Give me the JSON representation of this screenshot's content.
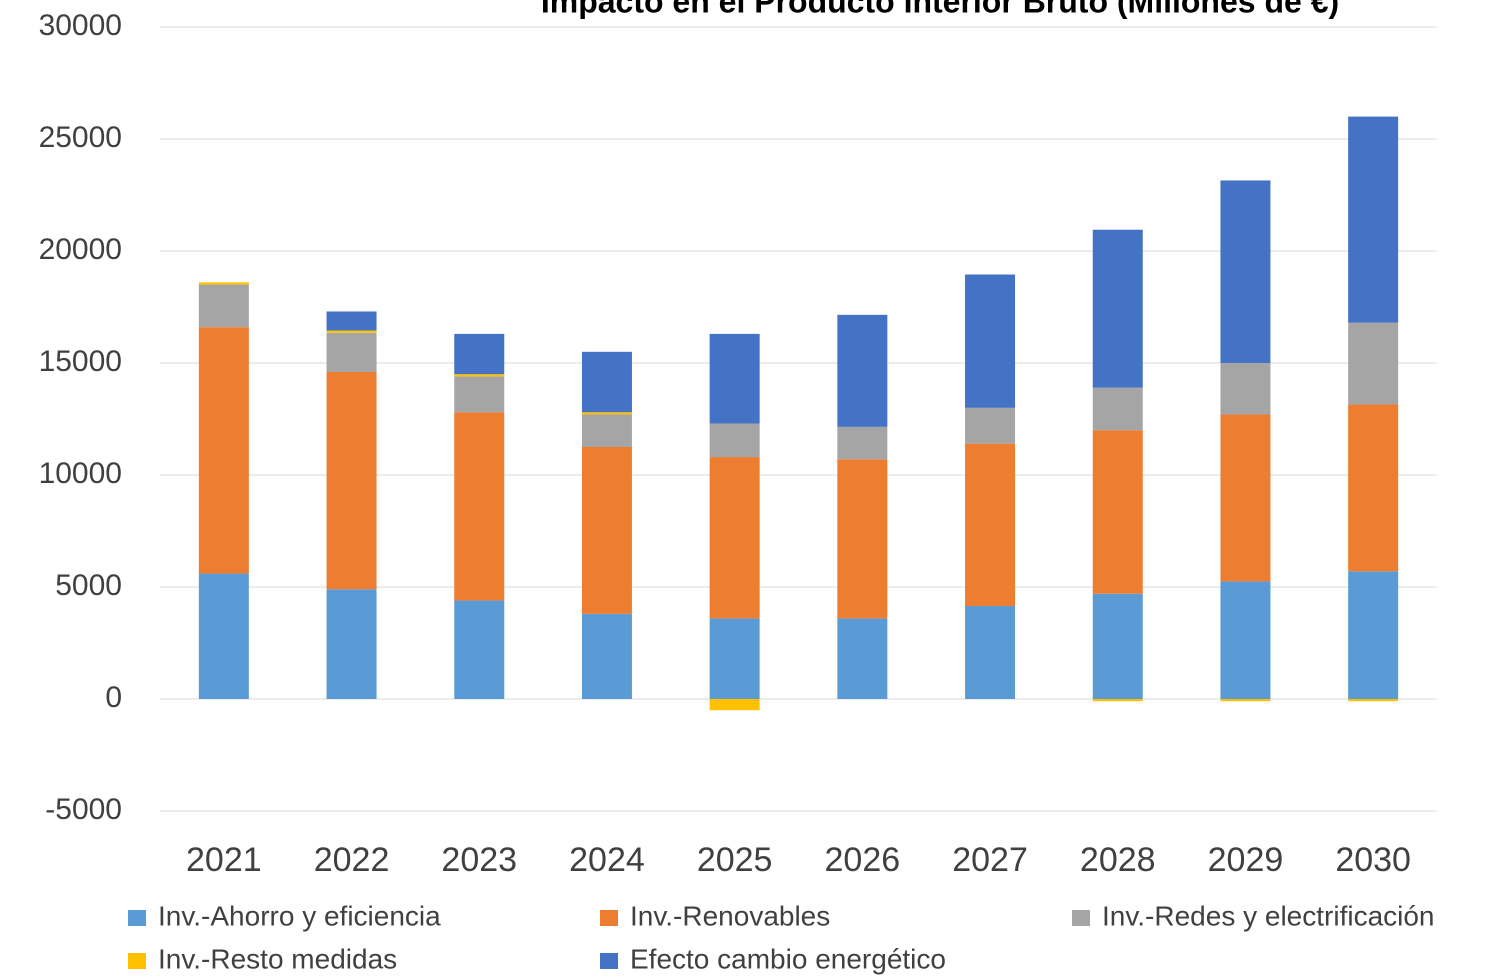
{
  "chart_data": {
    "type": "stacked_bar",
    "title": "Impacto en el Producto Interior Bruto (Millones de €)",
    "categories": [
      "2021",
      "2022",
      "2023",
      "2024",
      "2025",
      "2026",
      "2027",
      "2028",
      "2029",
      "2030"
    ],
    "series": [
      {
        "name": "Inv.-Ahorro y eficiencia",
        "color": "#5b9bd5",
        "values": [
          5600,
          4900,
          4400,
          3800,
          3600,
          3600,
          4150,
          4700,
          5250,
          5700
        ]
      },
      {
        "name": "Inv.-Renovables",
        "color": "#ed7d31",
        "values": [
          11000,
          9700,
          8400,
          7450,
          7200,
          7100,
          7250,
          7300,
          7450,
          7450
        ]
      },
      {
        "name": "Inv.-Redes y electrificación",
        "color": "#a5a5a5",
        "values": [
          1900,
          1750,
          1600,
          1450,
          1500,
          1450,
          1600,
          1900,
          2300,
          3650
        ]
      },
      {
        "name": "Inv.-Resto medidas",
        "color": "#ffc000",
        "values": [
          100,
          100,
          100,
          100,
          -500,
          0,
          0,
          -100,
          -100,
          -100
        ]
      },
      {
        "name": "Efecto cambio energético",
        "color": "#4472c4",
        "values": [
          0,
          850,
          1800,
          2700,
          4000,
          5000,
          5950,
          7050,
          8150,
          9200
        ]
      }
    ],
    "ylim": [
      -5000,
      30000
    ],
    "yticks": [
      -5000,
      0,
      5000,
      10000,
      15000,
      20000,
      25000,
      30000
    ],
    "grid": true
  }
}
